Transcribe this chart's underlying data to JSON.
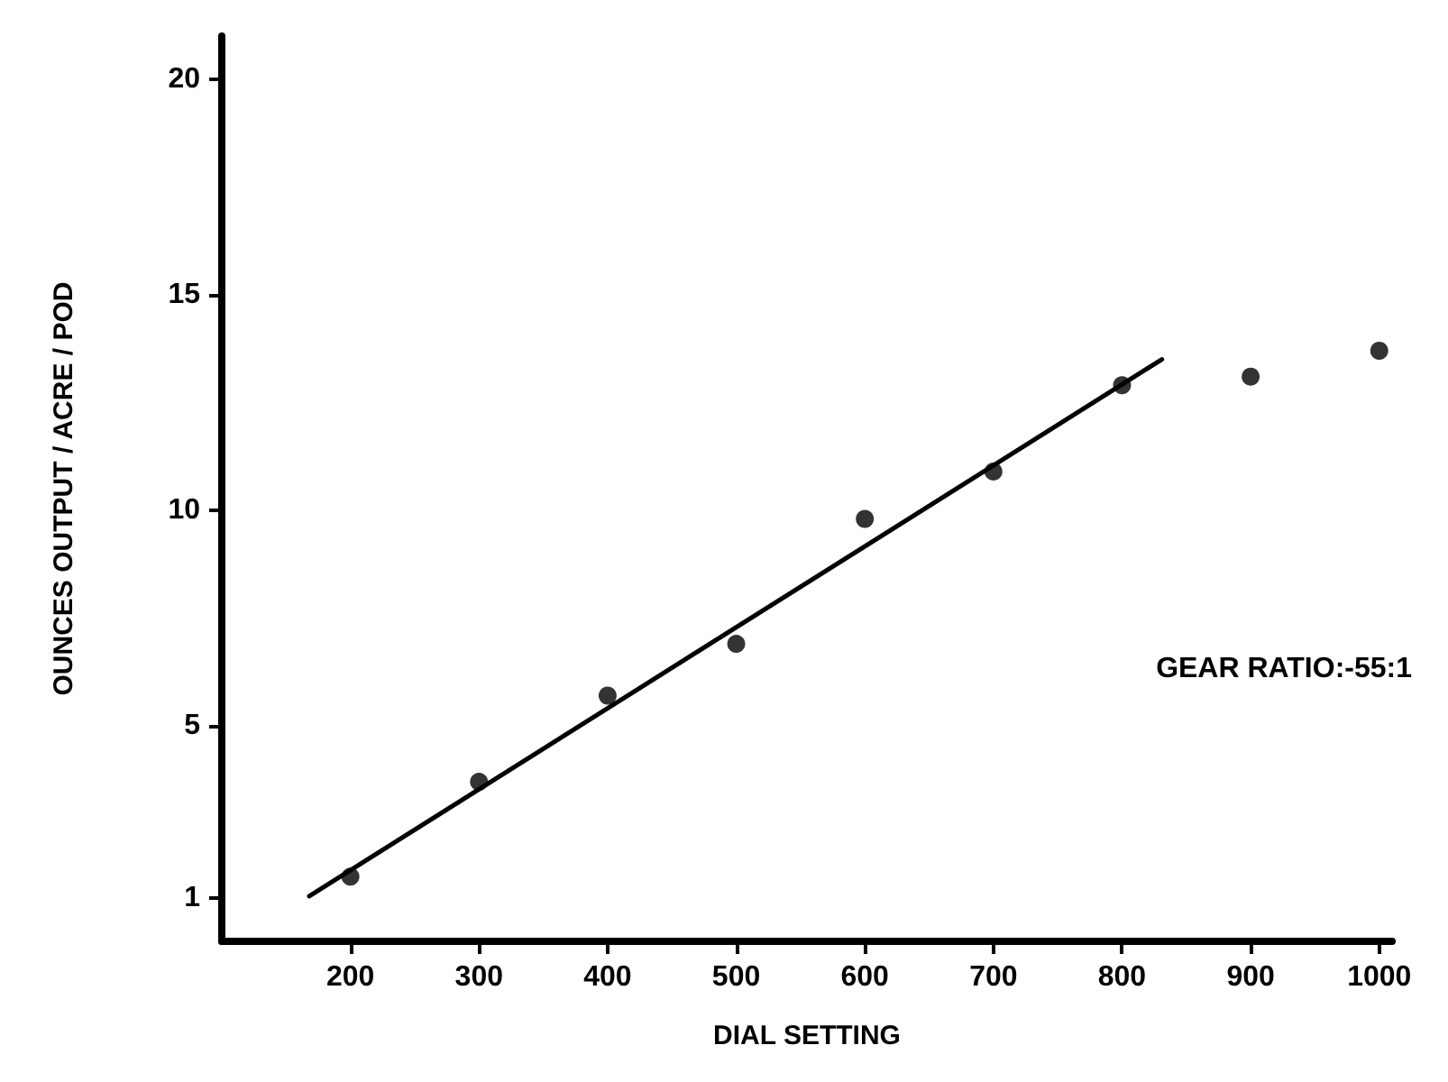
{
  "chart_data": {
    "type": "scatter",
    "xlabel": "DIAL SETTING",
    "ylabel": "OUNCES OUTPUT / ACRE / POD",
    "annotations": [
      "GEAR RATIO:-55:1"
    ],
    "xlim": [
      100,
      1010
    ],
    "xticks": [
      200,
      300,
      400,
      500,
      600,
      700,
      800,
      900,
      1000
    ],
    "ylim": [
      0,
      21
    ],
    "yticks": [
      1,
      5,
      10,
      15,
      20
    ],
    "grid": false,
    "series": [
      {
        "color": "#000000",
        "marker": "circle",
        "x": [
          200,
          300,
          400,
          500,
          600,
          700,
          800,
          900,
          1000
        ],
        "values": [
          1.5,
          3.7,
          5.7,
          6.9,
          9.8,
          10.9,
          12.9,
          13.1,
          13.7
        ]
      },
      {
        "type": "line",
        "color": "#000000",
        "marker": "none",
        "line_style": "solid",
        "x": [
          168,
          831
        ],
        "values": [
          1.05,
          13.5
        ]
      }
    ]
  }
}
